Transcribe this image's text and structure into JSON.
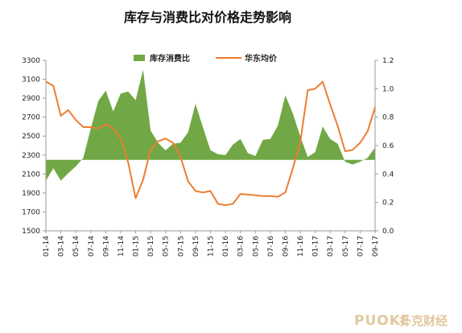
{
  "chart_data": {
    "type": "line",
    "title": "库存与消费比对价格走势影响",
    "legend_position": "top",
    "grid": false,
    "x_tick_labels": [
      "01-14",
      "03-14",
      "05-14",
      "07-14",
      "09-14",
      "11-14",
      "01-15",
      "03-15",
      "05-15",
      "07-15",
      "09-15",
      "11-15",
      "01-16",
      "03-16",
      "05-16",
      "07-16",
      "09-16",
      "11-16",
      "01-17",
      "03-17",
      "05-17",
      "07-17",
      "09-17"
    ],
    "y_left": {
      "ticks": [
        1500,
        1700,
        1900,
        2100,
        2300,
        2500,
        2700,
        2900,
        3100,
        3300
      ],
      "range": [
        1500,
        3300
      ],
      "baseline": 2250
    },
    "y_right": {
      "ticks": [
        "0.0",
        "0.2",
        "0.4",
        "0.6",
        "0.8",
        "1.0",
        "1.2"
      ],
      "range": [
        0,
        1.2
      ]
    },
    "series": [
      {
        "name": "库存消费比",
        "type": "area",
        "axis": "left",
        "color": "#71a845",
        "values": [
          2030,
          2160,
          2030,
          2110,
          2180,
          2270,
          2580,
          2870,
          2980,
          2760,
          2950,
          2970,
          2880,
          3200,
          2560,
          2430,
          2350,
          2420,
          2430,
          2540,
          2840,
          2590,
          2350,
          2310,
          2300,
          2410,
          2470,
          2320,
          2290,
          2460,
          2470,
          2610,
          2930,
          2740,
          2500,
          2280,
          2330,
          2600,
          2470,
          2420,
          2230,
          2200,
          2230,
          2270,
          2380
        ]
      },
      {
        "name": "华东均价",
        "type": "line",
        "axis": "right",
        "color": "#ed7d31",
        "values": [
          1.05,
          1.02,
          0.81,
          0.85,
          0.78,
          0.73,
          0.73,
          0.72,
          0.75,
          0.72,
          0.65,
          0.48,
          0.23,
          0.36,
          0.57,
          0.63,
          0.65,
          0.62,
          0.52,
          0.35,
          0.28,
          0.27,
          0.28,
          0.19,
          0.18,
          0.19,
          0.26,
          0.255,
          0.25,
          0.245,
          0.245,
          0.24,
          0.27,
          0.44,
          0.62,
          0.99,
          1.0,
          1.05,
          0.89,
          0.74,
          0.56,
          0.57,
          0.62,
          0.7,
          0.87
        ]
      }
    ]
  },
  "watermark": {
    "latin": "PUOKE",
    "cjk": "扑克财经",
    "color": "#e2c8a0"
  }
}
